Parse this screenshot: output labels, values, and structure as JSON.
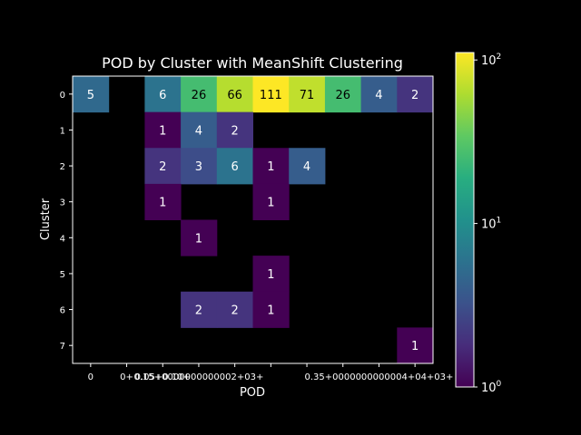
{
  "chart_data": {
    "type": "heatmap",
    "title": "POD by Cluster with MeanShift Clustering",
    "xlabel": "POD",
    "ylabel": "Cluster",
    "x_tick_labels": [
      "0",
      "0+",
      "0.05+",
      "0.10+",
      "0.15+",
      "0.20+",
      "0.25+",
      "0.30+",
      "0.35+",
      "0.40+"
    ],
    "x_tick_labels_display": [
      "0",
      "0+",
      "0.05+0.10+",
      "0.15+0000000000002+03+",
      "",
      "",
      "",
      "",
      "0.35+0000000000004+04+03+",
      ""
    ],
    "y_tick_labels": [
      "0",
      "1",
      "2",
      "3",
      "4",
      "5",
      "6",
      "7"
    ],
    "values": [
      [
        5,
        null,
        6,
        26,
        66,
        111,
        71,
        26,
        4,
        2
      ],
      [
        null,
        null,
        1,
        4,
        2,
        null,
        null,
        null,
        null,
        null
      ],
      [
        null,
        null,
        2,
        3,
        6,
        1,
        4,
        null,
        null,
        null
      ],
      [
        null,
        null,
        1,
        null,
        null,
        1,
        null,
        null,
        null,
        null
      ],
      [
        null,
        null,
        null,
        1,
        null,
        null,
        null,
        null,
        null,
        null
      ],
      [
        null,
        null,
        null,
        null,
        null,
        1,
        null,
        null,
        null,
        null
      ],
      [
        null,
        null,
        null,
        2,
        2,
        1,
        null,
        null,
        null,
        null
      ],
      [
        null,
        null,
        null,
        null,
        null,
        null,
        null,
        null,
        null,
        1
      ]
    ],
    "colorbar": {
      "scale": "log",
      "range": [
        1,
        111
      ],
      "colormap": "viridis",
      "ticks": [
        {
          "value": 1,
          "label": "10",
          "exp": "0"
        },
        {
          "value": 10,
          "label": "10",
          "exp": "1"
        },
        {
          "value": 100,
          "label": "10",
          "exp": "2"
        }
      ]
    },
    "grid": false,
    "background": "#000000"
  }
}
